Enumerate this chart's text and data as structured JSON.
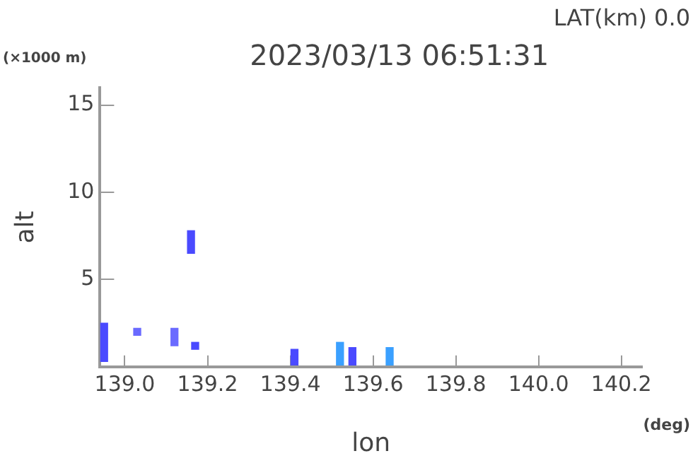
{
  "chart_data": {
    "type": "bar",
    "title": "2023/03/13 06:51:31",
    "xlabel": "lon",
    "ylabel": "alt",
    "annotations": [
      "LAT(km) 0.0",
      "(×1000 m)",
      "(deg)"
    ],
    "x": [
      138.95,
      139.03,
      139.12,
      139.16,
      139.17,
      139.41,
      139.52,
      139.55,
      139.64
    ],
    "base": [
      0.3,
      1.8,
      1.2,
      6.5,
      1.0,
      0.1,
      0.1,
      0.1,
      0.1
    ],
    "values": [
      2.2,
      0.4,
      1.0,
      1.3,
      0.4,
      0.9,
      1.3,
      1.0,
      1.0
    ],
    "colors": [
      "#4a4aff",
      "#6a6aff",
      "#6a6aff",
      "#4a4aff",
      "#4a4aff",
      "#4a4aff",
      "#3aa0ff",
      "#4a4aff",
      "#3aa0ff"
    ],
    "xlim": [
      138.94,
      140.25
    ],
    "ylim": [
      0,
      16
    ],
    "xticks": [
      {
        "value": 139.0,
        "label": "139.0"
      },
      {
        "value": 139.2,
        "label": "139.2"
      },
      {
        "value": 139.4,
        "label": "139.4"
      },
      {
        "value": 139.6,
        "label": "139.6"
      },
      {
        "value": 139.8,
        "label": "139.8"
      },
      {
        "value": 140.0,
        "label": "140.0"
      },
      {
        "value": 140.2,
        "label": "140.2"
      }
    ],
    "yticks": [
      5,
      10,
      15
    ],
    "grid": false,
    "legend": false
  }
}
